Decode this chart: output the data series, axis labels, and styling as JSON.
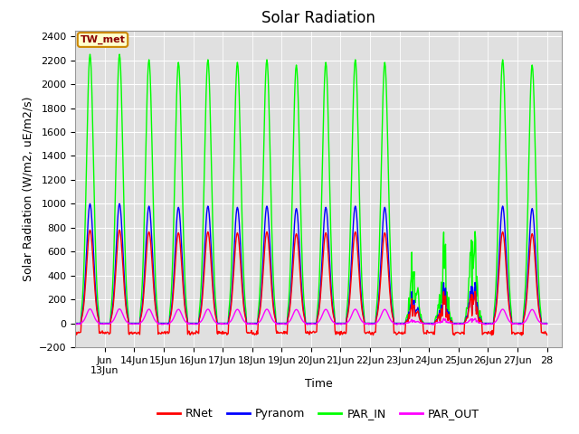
{
  "title": "Solar Radiation",
  "ylabel": "Solar Radiation (W/m2, uE/m2/s)",
  "xlabel": "Time",
  "ylim": [
    -200,
    2450
  ],
  "yticks": [
    -200,
    0,
    200,
    400,
    600,
    800,
    1000,
    1200,
    1400,
    1600,
    1800,
    2000,
    2200,
    2400
  ],
  "bg_color": "#e0e0e0",
  "fig_color": "#ffffff",
  "station_label": "TW_met",
  "legend": [
    "RNet",
    "Pyranom",
    "PAR_IN",
    "PAR_OUT"
  ],
  "colors": [
    "#ff0000",
    "#0000ff",
    "#00ff00",
    "#ff00ff"
  ],
  "line_width": 1.0,
  "title_fontsize": 12,
  "label_fontsize": 9,
  "tick_fontsize": 8
}
